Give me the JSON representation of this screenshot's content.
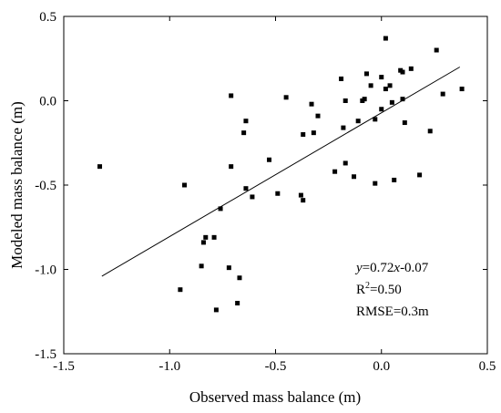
{
  "chart_data": {
    "type": "scatter",
    "xlabel": "Observed mass balance (m)",
    "ylabel": "Modeled mass balance  (m)",
    "xlim": [
      -1.5,
      0.5
    ],
    "ylim": [
      -1.5,
      0.5
    ],
    "x_ticks": [
      -1.5,
      -1.0,
      -0.5,
      0.0,
      0.5
    ],
    "x_tick_labels": [
      "-1.5",
      "-1.0",
      "-0.5",
      "0.0",
      "0.5"
    ],
    "y_ticks": [
      -1.5,
      -1.0,
      -0.5,
      0.0,
      0.5
    ],
    "y_tick_labels": [
      "-1.5",
      "-1.0",
      "-0.5",
      "0.0",
      "0.5"
    ],
    "grid": false,
    "legend": "none",
    "marker": "square",
    "color": "#000000",
    "points": [
      [
        -1.33,
        -0.39
      ],
      [
        -0.95,
        -1.12
      ],
      [
        -0.93,
        -0.5
      ],
      [
        -0.85,
        -0.98
      ],
      [
        -0.84,
        -0.84
      ],
      [
        -0.83,
        -0.81
      ],
      [
        -0.79,
        -0.81
      ],
      [
        -0.78,
        -1.24
      ],
      [
        -0.76,
        -0.64
      ],
      [
        -0.72,
        -0.99
      ],
      [
        -0.71,
        -0.39
      ],
      [
        -0.71,
        0.03
      ],
      [
        -0.68,
        -1.2
      ],
      [
        -0.67,
        -1.05
      ],
      [
        -0.65,
        -0.19
      ],
      [
        -0.64,
        -0.52
      ],
      [
        -0.64,
        -0.12
      ],
      [
        -0.61,
        -0.57
      ],
      [
        -0.53,
        -0.35
      ],
      [
        -0.49,
        -0.55
      ],
      [
        -0.45,
        0.02
      ],
      [
        -0.38,
        -0.56
      ],
      [
        -0.37,
        -0.59
      ],
      [
        -0.37,
        -0.2
      ],
      [
        -0.33,
        -0.02
      ],
      [
        -0.32,
        -0.19
      ],
      [
        -0.3,
        -0.09
      ],
      [
        -0.22,
        -0.42
      ],
      [
        -0.19,
        0.13
      ],
      [
        -0.18,
        -0.16
      ],
      [
        -0.17,
        0.0
      ],
      [
        -0.17,
        -0.37
      ],
      [
        -0.13,
        -0.45
      ],
      [
        -0.11,
        -0.12
      ],
      [
        -0.09,
        0.0
      ],
      [
        -0.08,
        0.01
      ],
      [
        -0.07,
        0.16
      ],
      [
        -0.05,
        0.09
      ],
      [
        -0.03,
        -0.11
      ],
      [
        -0.03,
        -0.49
      ],
      [
        0.0,
        0.14
      ],
      [
        0.0,
        -0.05
      ],
      [
        0.02,
        0.07
      ],
      [
        0.02,
        0.37
      ],
      [
        0.04,
        0.09
      ],
      [
        0.05,
        -0.01
      ],
      [
        0.06,
        -0.47
      ],
      [
        0.09,
        0.18
      ],
      [
        0.1,
        0.17
      ],
      [
        0.1,
        0.01
      ],
      [
        0.11,
        -0.13
      ],
      [
        0.14,
        0.19
      ],
      [
        0.18,
        -0.44
      ],
      [
        0.23,
        -0.18
      ],
      [
        0.26,
        0.3
      ],
      [
        0.29,
        0.04
      ],
      [
        0.38,
        0.07
      ]
    ],
    "fit_line": {
      "x": [
        -1.32,
        0.37
      ],
      "y": [
        -1.04,
        0.2
      ]
    },
    "annotations": {
      "equation": {
        "y": "y",
        "eq": "=0.72",
        "x": "x",
        "tail": "-0.07"
      },
      "r2": {
        "base": "R",
        "sup": "2",
        "tail": "=0.50"
      },
      "rmse": "RMSE=0.3m"
    }
  }
}
